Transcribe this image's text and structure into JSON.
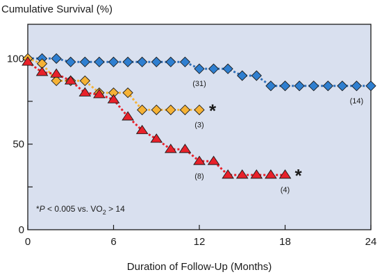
{
  "chart_data": {
    "type": "line",
    "title": "Cumulative Survival (%)",
    "xlabel": "Duration of Follow-Up (Months)",
    "ylabel": "",
    "xlim": [
      0,
      24
    ],
    "ylim": [
      0,
      120
    ],
    "xticks": [
      "0",
      "6",
      "12",
      "18",
      "24"
    ],
    "yticks": [
      "0",
      "50",
      "100"
    ],
    "grid": false,
    "background": "#d9e0ef",
    "series": [
      {
        "marker": "diamond",
        "color": "#2f7fd0",
        "line_color": "#2f6fb8",
        "x": [
          0,
          1,
          2,
          3,
          4,
          5,
          6,
          7,
          8,
          9,
          10,
          11,
          12,
          13,
          14,
          15,
          16,
          17,
          18,
          19,
          20,
          21,
          22,
          23,
          24
        ],
        "y": [
          100,
          100,
          100,
          98,
          98,
          98,
          98,
          98,
          98,
          98,
          98,
          98,
          94,
          94,
          94,
          90,
          90,
          84,
          84,
          84,
          84,
          84,
          84,
          84,
          84
        ]
      },
      {
        "marker": "diamond",
        "color": "#f5b235",
        "line_color": "#f5b235",
        "x": [
          0,
          1,
          2,
          3,
          4,
          5,
          6,
          7,
          8,
          9,
          10,
          11,
          12
        ],
        "y": [
          100,
          97,
          87,
          87,
          87,
          80,
          80,
          80,
          70,
          70,
          70,
          70,
          70
        ]
      },
      {
        "marker": "triangle",
        "color": "#e8212a",
        "line_color": "#e8212a",
        "x": [
          0,
          1,
          2,
          3,
          4,
          5,
          6,
          7,
          8,
          9,
          10,
          11,
          12,
          13,
          14,
          15,
          16,
          17,
          18
        ],
        "y": [
          98,
          92,
          91,
          87,
          80,
          79,
          76,
          66,
          58,
          53,
          47,
          47,
          40,
          40,
          32,
          32,
          32,
          32,
          32
        ]
      }
    ],
    "annotations": [
      {
        "text": "(31)",
        "x": 12,
        "y": 94
      },
      {
        "text": "(14)",
        "x": 23,
        "y": 84
      },
      {
        "text": "(3)",
        "x": 12,
        "y": 70
      },
      {
        "text": "(8)",
        "x": 12,
        "y": 40
      },
      {
        "text": "(4)",
        "x": 18,
        "y": 32
      }
    ],
    "stars": [
      {
        "text": "*",
        "x": 12,
        "y": 70
      },
      {
        "text": "*",
        "x": 18,
        "y": 32
      }
    ],
    "note": {
      "prefix": "*",
      "p": "P",
      "mid": " < 0.005 vs. VO",
      "sub": "2",
      "suffix": " > 14"
    }
  }
}
